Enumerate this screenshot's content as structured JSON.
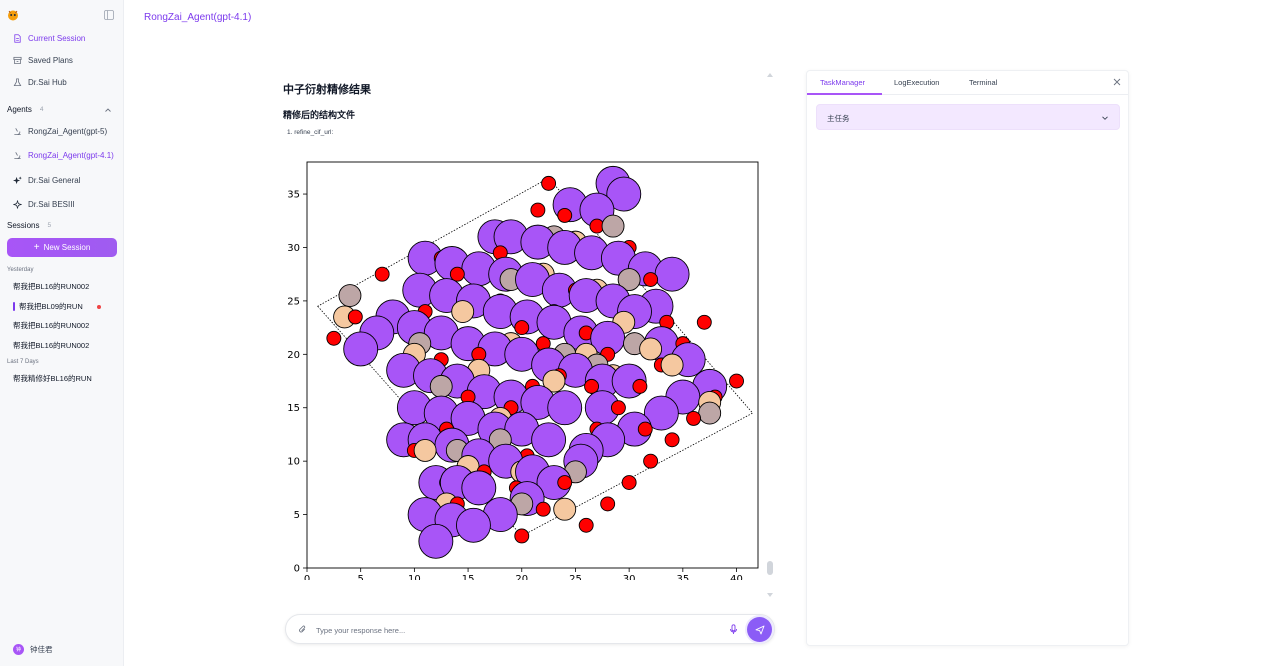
{
  "app": {
    "title": "RongZai_Agent(gpt-4.1)",
    "accent": "#7c3aed"
  },
  "sidebar": {
    "nav": [
      {
        "label": "Current Session",
        "icon": "document-icon",
        "active": true
      },
      {
        "label": "Saved Plans",
        "icon": "archive-icon",
        "active": false
      },
      {
        "label": "Dr.Sai Hub",
        "icon": "flask-icon",
        "active": false
      }
    ],
    "agents_title": "Agents",
    "agents_count": "4",
    "agents": [
      {
        "label": "RongZai_Agent(gpt-5)",
        "icon": "microscope-icon",
        "active": false
      },
      {
        "label": "RongZai_Agent(gpt-4.1)",
        "icon": "microscope-icon",
        "active": true
      },
      {
        "label": "Dr.Sai General",
        "icon": "sparkles-icon",
        "active": false
      },
      {
        "label": "Dr.Sai BESIII",
        "icon": "sparkle-icon",
        "active": false
      }
    ],
    "sessions_title": "Sessions",
    "sessions_count": "5",
    "new_session_label": "New Session",
    "groups": [
      {
        "label": "Yesterday",
        "items": [
          "帮我把BL16的RUN002",
          "帮我把BL09的RUN",
          "帮我把BL16的RUN002",
          "帮我把BL16的RUN002"
        ]
      },
      {
        "label": "Last 7 Days",
        "items": [
          "帮我精修好BL16的RUN"
        ]
      }
    ],
    "user_name": "钟佳君",
    "user_avatar": "钟"
  },
  "chat": {
    "heading": "中子衍射精修结果",
    "subheading": "精修后的结构文件",
    "list_item": "1.  refine_cif_url:",
    "input_placeholder": "Type your response here..."
  },
  "right_panel": {
    "tabs": [
      "TaskManager",
      "LogExecution",
      "Terminal"
    ],
    "active_tab": "TaskManager",
    "task_label": "主任务"
  },
  "chart_data": {
    "type": "scatter",
    "title": "",
    "xlabel": "",
    "ylabel": "",
    "xlim": [
      0,
      42
    ],
    "ylim": [
      0,
      38
    ],
    "xticks": [
      "0",
      "5",
      "10",
      "15",
      "20",
      "25",
      "30",
      "35",
      "40"
    ],
    "yticks": [
      "0",
      "5",
      "10",
      "15",
      "20",
      "25",
      "30",
      "35"
    ],
    "grid": false,
    "unit_cell_corners": [
      [
        1,
        24.5
      ],
      [
        20,
        3
      ],
      [
        41.5,
        14.5
      ],
      [
        22.5,
        36.5
      ]
    ],
    "series": [
      {
        "color": "#a855f7",
        "size": "large",
        "points": [
          [
            12,
            2.5
          ],
          [
            13.5,
            4.5
          ],
          [
            15.5,
            4
          ],
          [
            12,
            8
          ],
          [
            14,
            8
          ],
          [
            16,
            7.5
          ],
          [
            11,
            12
          ],
          [
            13.5,
            11.5
          ],
          [
            16,
            10.5
          ],
          [
            18.5,
            10
          ],
          [
            21,
            9
          ],
          [
            10,
            15
          ],
          [
            12.5,
            14.5
          ],
          [
            15,
            14
          ],
          [
            17.5,
            13
          ],
          [
            20,
            13
          ],
          [
            22.5,
            12
          ],
          [
            9,
            18.5
          ],
          [
            11.5,
            18
          ],
          [
            14,
            17.5
          ],
          [
            16.5,
            16.5
          ],
          [
            19,
            16
          ],
          [
            21.5,
            15.5
          ],
          [
            24,
            15
          ],
          [
            10,
            22.5
          ],
          [
            12.5,
            22
          ],
          [
            15,
            21
          ],
          [
            17.5,
            20.5
          ],
          [
            20,
            20
          ],
          [
            22.5,
            19
          ],
          [
            25,
            18.5
          ],
          [
            27.5,
            17.5
          ],
          [
            10.5,
            26
          ],
          [
            13,
            25.5
          ],
          [
            15.5,
            25
          ],
          [
            18,
            24
          ],
          [
            20.5,
            23.5
          ],
          [
            23,
            23
          ],
          [
            25.5,
            22
          ],
          [
            28,
            21.5
          ],
          [
            11,
            29
          ],
          [
            13.5,
            28.5
          ],
          [
            16,
            28
          ],
          [
            18.5,
            27.5
          ],
          [
            21,
            27
          ],
          [
            23.5,
            26
          ],
          [
            26,
            25.5
          ],
          [
            28.5,
            25
          ],
          [
            19,
            31
          ],
          [
            21.5,
            30.5
          ],
          [
            24,
            30
          ],
          [
            26.5,
            29.5
          ],
          [
            29,
            29
          ],
          [
            31.5,
            28
          ],
          [
            24.5,
            34
          ],
          [
            27,
            33.5
          ],
          [
            28.5,
            36
          ],
          [
            29.5,
            35
          ],
          [
            30.5,
            24
          ],
          [
            33,
            21
          ],
          [
            35.5,
            19.5
          ],
          [
            37.5,
            17
          ],
          [
            35,
            16
          ],
          [
            33,
            14.5
          ],
          [
            30.5,
            13
          ],
          [
            28,
            12
          ],
          [
            25.5,
            10
          ],
          [
            23,
            8
          ],
          [
            20.5,
            6.5
          ],
          [
            18,
            5
          ],
          [
            27.5,
            15
          ],
          [
            30,
            17.5
          ],
          [
            32.5,
            24.5
          ],
          [
            34,
            27.5
          ],
          [
            6.5,
            22
          ],
          [
            8,
            23.5
          ],
          [
            5,
            20.5
          ],
          [
            9,
            12
          ],
          [
            11,
            5
          ],
          [
            17.5,
            31
          ],
          [
            26,
            11
          ]
        ]
      },
      {
        "color": "#f5c8a0",
        "size": "medium",
        "points": [
          [
            3.5,
            23.5
          ],
          [
            12.5,
            22.5
          ],
          [
            10,
            20
          ],
          [
            11,
            11
          ],
          [
            19,
            21
          ],
          [
            23,
            17.5
          ],
          [
            26,
            20
          ],
          [
            28.5,
            18
          ],
          [
            32,
            20.5
          ],
          [
            27,
            26
          ],
          [
            25,
            30.5
          ],
          [
            22,
            27.5
          ],
          [
            15,
            9.5
          ],
          [
            20,
            9
          ],
          [
            24,
            5.5
          ],
          [
            13,
            6
          ],
          [
            37.5,
            15.5
          ],
          [
            34,
            19
          ],
          [
            29.5,
            23
          ],
          [
            14.5,
            24
          ],
          [
            18,
            14
          ],
          [
            16,
            18.5
          ]
        ]
      },
      {
        "color": "#bda6a6",
        "size": "medium",
        "points": [
          [
            4,
            25.5
          ],
          [
            14,
            11
          ],
          [
            18,
            12
          ],
          [
            20,
            6
          ],
          [
            21.5,
            16
          ],
          [
            24,
            20
          ],
          [
            27,
            19
          ],
          [
            30.5,
            21
          ],
          [
            30,
            27
          ],
          [
            28.5,
            32
          ],
          [
            23,
            31
          ],
          [
            19,
            27
          ],
          [
            25,
            9
          ],
          [
            37.5,
            14.5
          ],
          [
            12.5,
            17
          ],
          [
            10.5,
            21
          ]
        ]
      },
      {
        "color": "#ff0000",
        "size": "small",
        "points": [
          [
            2.5,
            21.5
          ],
          [
            4.5,
            23.5
          ],
          [
            7,
            27.5
          ],
          [
            9.5,
            22.5
          ],
          [
            11,
            24
          ],
          [
            12.5,
            29
          ],
          [
            14,
            18
          ],
          [
            13,
            13
          ],
          [
            10,
            11
          ],
          [
            13,
            8
          ],
          [
            14,
            6
          ],
          [
            20,
            3
          ],
          [
            22,
            5.5
          ],
          [
            24,
            8
          ],
          [
            25.5,
            11
          ],
          [
            27,
            13
          ],
          [
            29,
            15
          ],
          [
            31,
            17
          ],
          [
            33,
            19
          ],
          [
            35,
            21
          ],
          [
            37,
            23
          ],
          [
            40,
            17.5
          ],
          [
            38,
            16
          ],
          [
            36,
            14
          ],
          [
            34,
            12
          ],
          [
            32,
            10
          ],
          [
            30,
            8
          ],
          [
            28,
            6
          ],
          [
            26,
            4
          ],
          [
            22.5,
            36
          ],
          [
            21.5,
            33.5
          ],
          [
            24,
            33
          ],
          [
            27,
            32
          ],
          [
            30,
            30
          ],
          [
            32,
            27
          ],
          [
            33.5,
            23
          ],
          [
            18,
            29.5
          ],
          [
            16,
            28.5
          ],
          [
            14,
            27.5
          ],
          [
            20,
            22.5
          ],
          [
            22,
            21
          ],
          [
            25,
            26
          ],
          [
            23.5,
            18
          ],
          [
            21,
            17
          ],
          [
            19,
            15
          ],
          [
            17,
            13
          ],
          [
            15,
            16
          ],
          [
            26,
            22
          ],
          [
            28,
            20
          ],
          [
            16,
            20
          ],
          [
            18,
            25
          ],
          [
            23,
            24
          ],
          [
            20.5,
            10.5
          ],
          [
            26.5,
            17
          ],
          [
            29,
            25.5
          ],
          [
            31.5,
            13
          ],
          [
            19.5,
            7.5
          ],
          [
            12.5,
            19.5
          ],
          [
            16.5,
            9
          ]
        ]
      }
    ]
  }
}
